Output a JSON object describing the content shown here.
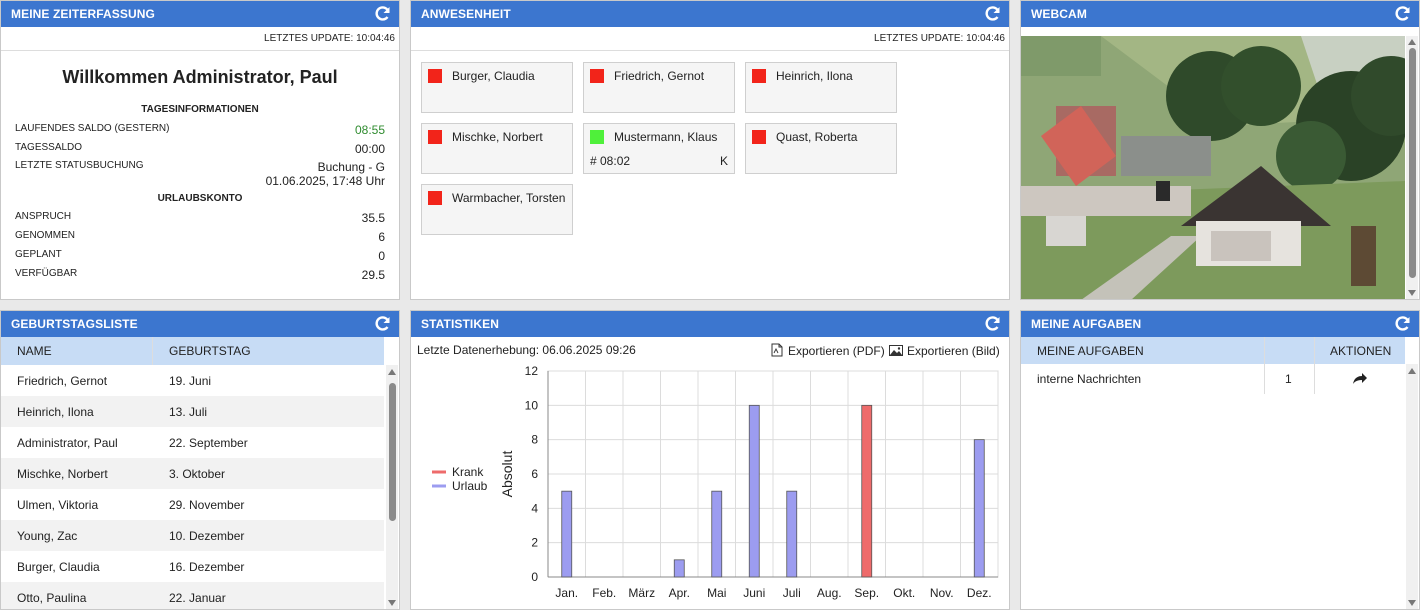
{
  "time": {
    "title": "MEINE ZEITERFASSUNG",
    "update": "LETZTES UPDATE: 10:04:46",
    "welcome": "Willkommen Administrator, Paul",
    "day_h": "TAGESINFORMATIONEN",
    "rows": [
      {
        "k": "LAUFENDES SALDO (GESTERN)",
        "v": "08:55"
      },
      {
        "k": "TAGESSALDO",
        "v": "00:00"
      },
      {
        "k": "LETZTE STATUSBUCHUNG",
        "v": "Buchung - G",
        "v2": "01.06.2025, 17:48 Uhr"
      }
    ],
    "vac_h": "URLAUBSKONTO",
    "vac": [
      {
        "k": "ANSPRUCH",
        "v": "35.5"
      },
      {
        "k": "GENOMMEN",
        "v": "6"
      },
      {
        "k": "GEPLANT",
        "v": "0"
      },
      {
        "k": "VERFÜGBAR",
        "v": "29.5"
      }
    ],
    "saldo_color": "#2e8b2e"
  },
  "att": {
    "title": "ANWESENHEIT",
    "update": "LETZTES UPDATE: 10:04:46",
    "people": [
      {
        "name": "Burger, Claudia",
        "color": "#f2241a"
      },
      {
        "name": "Friedrich, Gernot",
        "color": "#f2241a"
      },
      {
        "name": "Heinrich, Ilona",
        "color": "#f2241a"
      },
      {
        "name": "Mischke, Norbert",
        "color": "#f2241a"
      },
      {
        "name": "Mustermann, Klaus",
        "color": "#4ff03a",
        "time": "# 08:02",
        "status": "K"
      },
      {
        "name": "Quast, Roberta",
        "color": "#f2241a"
      },
      {
        "name": "Warmbacher, Torsten",
        "color": "#f2241a"
      }
    ]
  },
  "webcam": {
    "title": "WEBCAM"
  },
  "bday": {
    "title": "GEBURTSTAGSLISTE",
    "col_name": "NAME",
    "col_day": "GEBURTSTAG",
    "rows": [
      [
        "Friedrich, Gernot",
        "19. Juni"
      ],
      [
        "Heinrich, Ilona",
        "13. Juli"
      ],
      [
        "Administrator, Paul",
        "22. September"
      ],
      [
        "Mischke, Norbert",
        "3. Oktober"
      ],
      [
        "Ulmen, Viktoria",
        "29. November"
      ],
      [
        "Young, Zac",
        "10. Dezember"
      ],
      [
        "Burger, Claudia",
        "16. Dezember"
      ],
      [
        "Otto, Paulina",
        "22. Januar"
      ]
    ]
  },
  "stats": {
    "title": "STATISTIKEN",
    "collected": "Letzte Datenerhebung: 06.06.2025 09:26",
    "export_pdf": "Exportieren (PDF)",
    "export_img": "Exportieren (Bild)"
  },
  "tasks": {
    "title": "MEINE AUFGABEN",
    "col_tasks": "MEINE AUFGABEN",
    "col_actions": "AKTIONEN",
    "rows": [
      {
        "name": "interne Nachrichten",
        "count": "1"
      }
    ]
  },
  "chart_data": {
    "type": "bar",
    "categories": [
      "Jan.",
      "Feb.",
      "März",
      "Apr.",
      "Mai",
      "Juni",
      "Juli",
      "Aug.",
      "Sep.",
      "Okt.",
      "Nov.",
      "Dez."
    ],
    "series": [
      {
        "name": "Krank",
        "color": "#ee6b6b",
        "values": [
          0,
          0,
          0,
          0,
          0,
          0,
          0,
          0,
          10,
          0,
          0,
          0
        ]
      },
      {
        "name": "Urlaub",
        "color": "#9c9cf0",
        "values": [
          5,
          0,
          0,
          1,
          5,
          10,
          5,
          0,
          0,
          0,
          0,
          8
        ]
      }
    ],
    "ylabel": "Absolut",
    "ylim": [
      0,
      12
    ],
    "yticks": [
      0,
      2,
      4,
      6,
      8,
      10,
      12
    ],
    "grid": true,
    "legend": "left"
  }
}
